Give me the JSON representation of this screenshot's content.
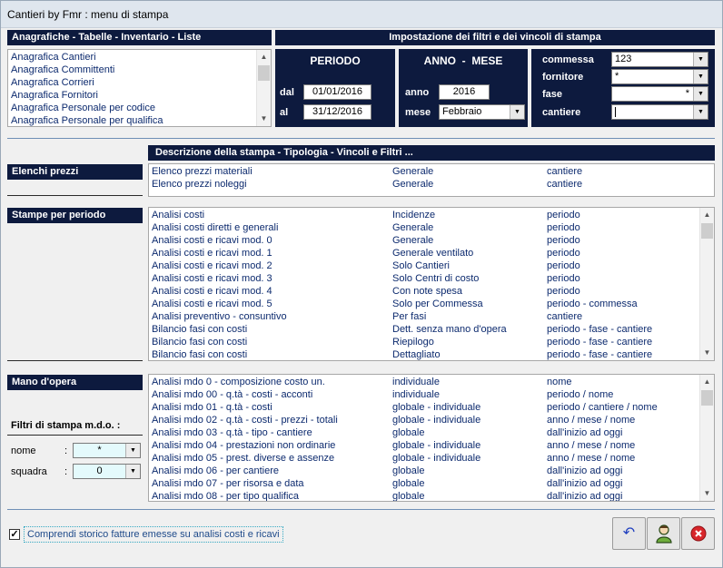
{
  "window": {
    "title": "Cantieri by Fmr : menu di stampa"
  },
  "anagrafiche": {
    "header": "Anagrafiche - Tabelle - Inventario - Liste",
    "items": [
      "Anagrafica Cantieri",
      "Anagrafica Committenti",
      "Anagrafica Corrieri",
      "Anagrafica Fornitori",
      "Anagrafica Personale per codice",
      "Anagrafica Personale per qualifica"
    ]
  },
  "impostazione": {
    "header": "Impostazione dei filtri e dei vincoli di stampa"
  },
  "periodo": {
    "title": "PERIODO",
    "dal_label": "dal",
    "dal_value": "01/01/2016",
    "al_label": "al",
    "al_value": "31/12/2016"
  },
  "anno_mese": {
    "title": "ANNO  -  MESE",
    "anno_label": "anno",
    "anno_value": "2016",
    "mese_label": "mese",
    "mese_value": "Febbraio"
  },
  "vincoli": {
    "commessa_label": "commessa",
    "commessa_value": "123",
    "fornitore_label": "fornitore",
    "fornitore_value": "*",
    "fase_label": "fase",
    "fase_value": "*",
    "cantiere_label": "cantiere",
    "cantiere_value": ""
  },
  "descrizione": {
    "header": "Descrizione della stampa - Tipologia - Vincoli e Filtri ..."
  },
  "elenchi_prezzi": {
    "label": "Elenchi prezzi",
    "rows": [
      [
        "Elenco prezzi materiali",
        "Generale",
        "cantiere"
      ],
      [
        "Elenco prezzi noleggi",
        "Generale",
        "cantiere"
      ]
    ]
  },
  "stampe_periodo": {
    "label": "Stampe per periodo",
    "rows": [
      [
        "Analisi costi",
        "Incidenze",
        "periodo"
      ],
      [
        "Analisi costi diretti e generali",
        "Generale",
        "periodo"
      ],
      [
        "Analisi costi e ricavi mod. 0",
        "Generale",
        "periodo"
      ],
      [
        "Analisi costi e ricavi mod. 1",
        "Generale ventilato",
        "periodo"
      ],
      [
        "Analisi costi e ricavi mod. 2",
        "Solo Cantieri",
        "periodo"
      ],
      [
        "Analisi costi e ricavi mod. 3",
        "Solo Centri di costo",
        "periodo"
      ],
      [
        "Analisi costi e ricavi mod. 4",
        "Con note spesa",
        "periodo"
      ],
      [
        "Analisi costi e ricavi mod. 5",
        "Solo per Commessa",
        "periodo - commessa"
      ],
      [
        "Analisi preventivo - consuntivo",
        "Per fasi",
        "cantiere"
      ],
      [
        "Bilancio fasi con costi",
        "Dett. senza mano d'opera",
        "periodo - fase - cantiere"
      ],
      [
        "Bilancio fasi con costi",
        "Riepilogo",
        "periodo - fase - cantiere"
      ],
      [
        "Bilancio fasi con costi",
        "Dettagliato",
        "periodo - fase - cantiere"
      ]
    ]
  },
  "mano_opera": {
    "label": "Mano d'opera",
    "rows": [
      [
        "Analisi mdo 0   - composizione costo un.",
        "individuale",
        "nome"
      ],
      [
        "Analisi mdo 00 - q.tà - costi - acconti",
        "individuale",
        "periodo / nome"
      ],
      [
        "Analisi mdo 01 - q.tà - costi",
        "globale - individuale",
        "periodo / cantiere / nome"
      ],
      [
        "Analisi mdo 02 - q.tà - costi - prezzi - totali",
        "globale - individuale",
        "anno / mese / nome"
      ],
      [
        "Analisi mdo 03 - q.tà - tipo - cantiere",
        "globale",
        "dall'inizio ad oggi"
      ],
      [
        "Analisi mdo 04 - prestazioni non ordinarie",
        "globale - individuale",
        "anno / mese / nome"
      ],
      [
        "Analisi mdo 05 - prest. diverse e assenze",
        "globale - individuale",
        "anno / mese / nome"
      ],
      [
        "Analisi mdo 06 - per cantiere",
        "globale",
        "dall'inizio ad oggi"
      ],
      [
        "Analisi mdo 07 - per risorsa e data",
        "globale",
        "dall'inizio ad oggi"
      ],
      [
        "Analisi mdo 08 - per tipo qualifica",
        "globale",
        "dall'inizio ad oggi"
      ]
    ]
  },
  "filtri_mdo": {
    "title": "Filtri di stampa m.d.o. :",
    "nome_label": "nome",
    "nome_value": "*",
    "squadra_label": "squadra",
    "squadra_value": "0",
    "colon": ":"
  },
  "storico": {
    "label": "Comprendi storico fatture emesse su analisi costi e ricavi",
    "checked": true
  },
  "icons": {
    "back": "undo-icon",
    "user": "user-icon",
    "close": "close-icon"
  }
}
